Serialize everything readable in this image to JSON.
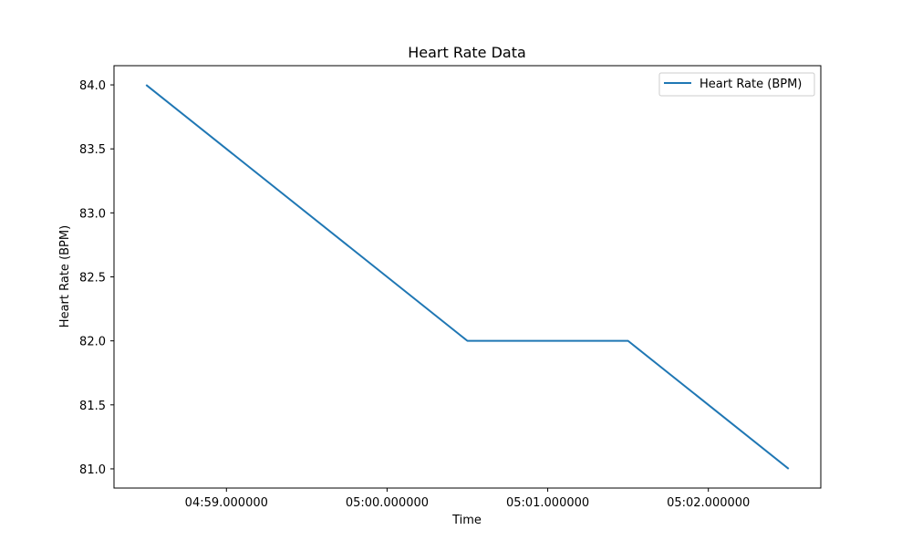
{
  "chart_data": {
    "type": "line",
    "title": "Heart Rate Data",
    "xlabel": "Time",
    "ylabel": "Heart Rate (BPM)",
    "x": [
      "04:58.500000",
      "05:00.500000",
      "05:01.500000",
      "05:02.500000"
    ],
    "series": [
      {
        "name": "Heart Rate (BPM)",
        "values": [
          84.0,
          82.0,
          82.0,
          81.0
        ],
        "color": "#1f77b4"
      }
    ],
    "x_ticks": [
      "04:59.000000",
      "05:00.000000",
      "05:01.000000",
      "05:02.000000"
    ],
    "y_ticks": [
      "81.0",
      "81.5",
      "82.0",
      "82.5",
      "83.0",
      "83.5",
      "84.0"
    ],
    "ylim": [
      80.85,
      84.15
    ],
    "xlim": [
      "04:58.300000",
      "05:02.700000"
    ],
    "grid": false,
    "legend_position": "top-right"
  }
}
